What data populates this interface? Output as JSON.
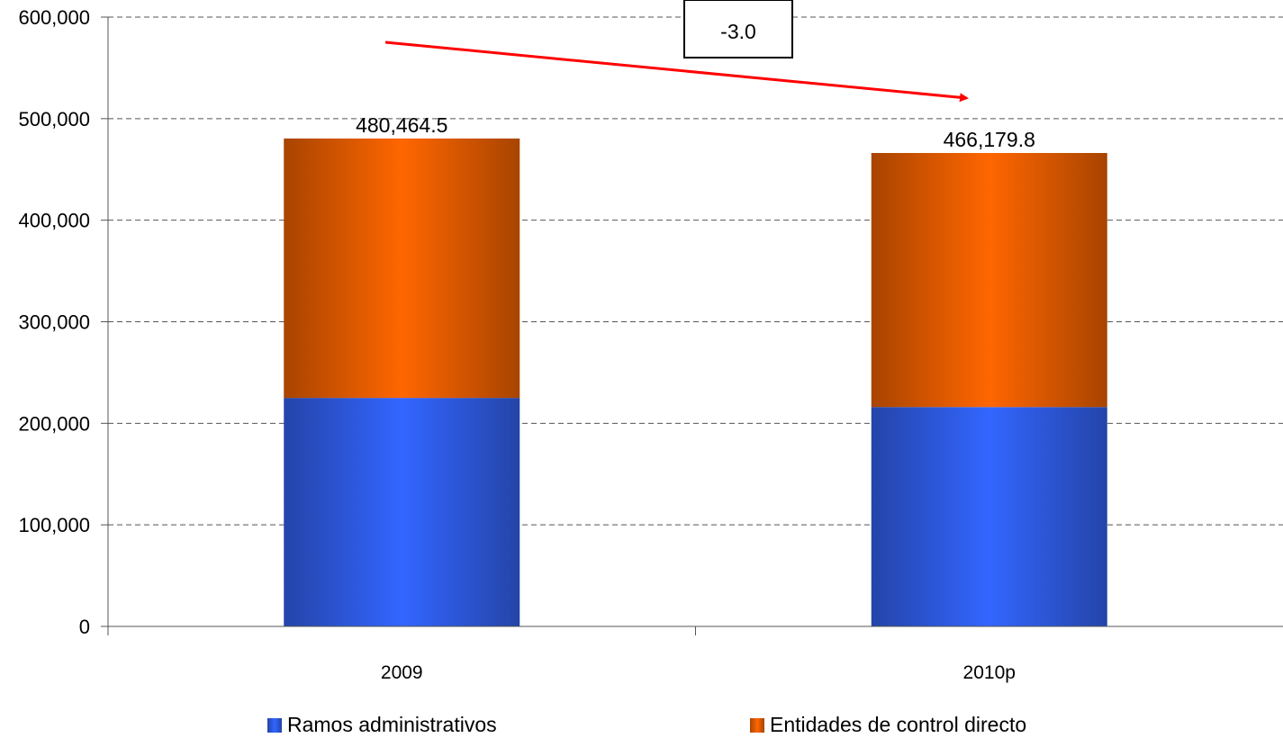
{
  "chart_data": {
    "type": "bar",
    "stacked": true,
    "categories": [
      "2009",
      "2010p"
    ],
    "series": [
      {
        "name": "Ramos administrativos",
        "values": [
          225000,
          216000
        ],
        "color": "#3366FF"
      },
      {
        "name": "Entidades de control directo",
        "values": [
          255464.5,
          250179.8
        ],
        "color": "#FF6600"
      }
    ],
    "totals": [
      480464.5,
      466179.8
    ],
    "total_labels": [
      "480,464.5",
      "466,179.8"
    ],
    "ylim": [
      0,
      600000
    ],
    "yticks": [
      0,
      100000,
      200000,
      300000,
      400000,
      500000,
      600000
    ],
    "ytick_labels": [
      "0",
      "100,000",
      "200,000",
      "300,000",
      "400,000",
      "500,000",
      "600,000"
    ],
    "grid": true,
    "grid_style": "dashed",
    "legend_position": "bottom",
    "annotation": {
      "text": "-3.0",
      "arrow_color": "#FF0000"
    },
    "title": "",
    "xlabel": "",
    "ylabel": ""
  }
}
